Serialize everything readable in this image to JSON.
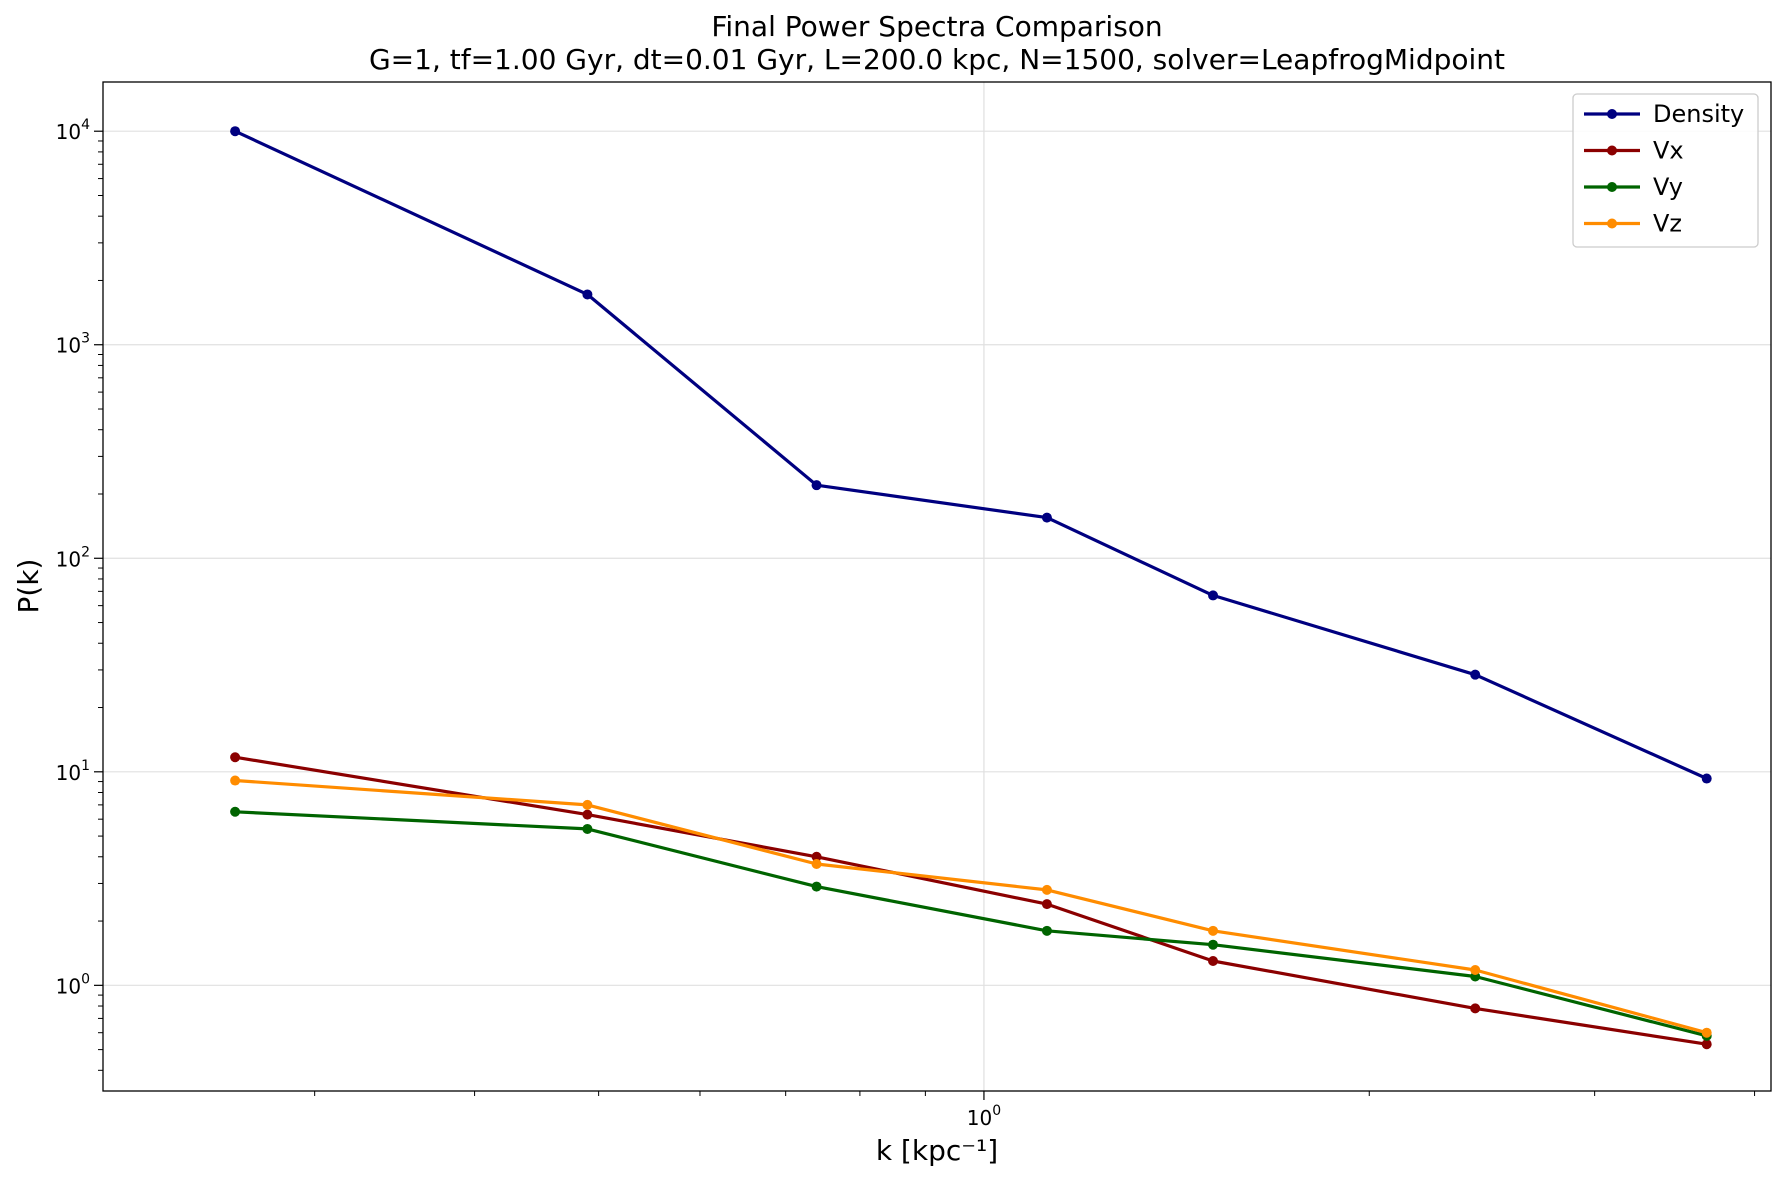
{
  "chart_data": {
    "type": "line",
    "title": "Final Power Spectra Comparison",
    "subtitle": "G=1, tf=1.00 Gyr, dt=0.01 Gyr, L=200.0 kpc, N=1500, solver=LeapfrogMidpoint",
    "xlabel": "k [kpc⁻¹]",
    "ylabel": "P(k)",
    "xscale": "log",
    "yscale": "log",
    "xlim": [
      0.205,
      4.12
    ],
    "ylim": [
      0.32,
      17000
    ],
    "grid": true,
    "legend_position": "top-right",
    "x": [
      0.26,
      0.49,
      0.74,
      1.12,
      1.51,
      2.42,
      3.67
    ],
    "series": [
      {
        "name": "Density",
        "color": "#000080",
        "values": [
          10000,
          1720,
          220,
          155,
          67,
          28.5,
          9.3
        ]
      },
      {
        "name": "Vx",
        "color": "#8b0000",
        "values": [
          11.7,
          6.3,
          4.0,
          2.4,
          1.3,
          0.78,
          0.53
        ]
      },
      {
        "name": "Vy",
        "color": "#006400",
        "values": [
          6.5,
          5.4,
          2.9,
          1.8,
          1.55,
          1.1,
          0.58
        ]
      },
      {
        "name": "Vz",
        "color": "#ff8c00",
        "values": [
          9.1,
          7.0,
          3.7,
          2.8,
          1.8,
          1.18,
          0.6
        ]
      }
    ],
    "x_tick_labels": [
      {
        "value": 1,
        "base": "10",
        "exp": "0"
      }
    ],
    "y_tick_labels": [
      {
        "value": 1,
        "base": "10",
        "exp": "0"
      },
      {
        "value": 10,
        "base": "10",
        "exp": "1"
      },
      {
        "value": 100,
        "base": "10",
        "exp": "2"
      },
      {
        "value": 1000,
        "base": "10",
        "exp": "3"
      },
      {
        "value": 10000,
        "base": "10",
        "exp": "4"
      }
    ]
  }
}
